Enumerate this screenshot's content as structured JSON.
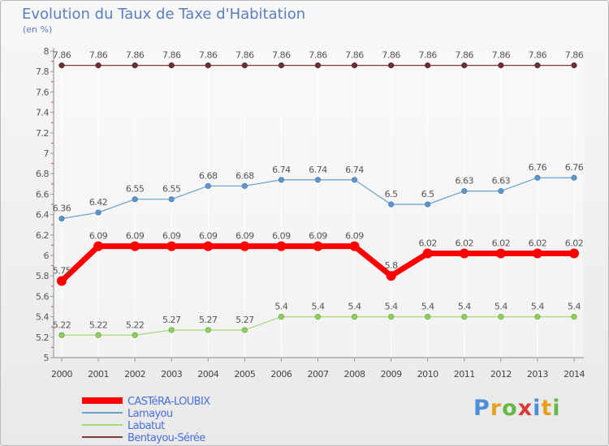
{
  "chart_data": {
    "type": "line",
    "title": "Evolution du Taux de Taxe d'Habitation",
    "ylabel": "(en %)",
    "ylim": [
      5,
      8
    ],
    "yticks": [
      "5",
      "5.2",
      "5.4",
      "5.6",
      "5.8",
      "6",
      "6.2",
      "6.4",
      "6.6",
      "6.8",
      "7",
      "7.2",
      "7.4",
      "7.6",
      "7.8",
      "8"
    ],
    "categories": [
      "2000",
      "2001",
      "2002",
      "2003",
      "2004",
      "2005",
      "2006",
      "2007",
      "2008",
      "2009",
      "2010",
      "2011",
      "2012",
      "2013",
      "2014"
    ],
    "series": [
      {
        "name": "CASTéRA-LOUBIX",
        "color": "#ff0000",
        "values": [
          5.75,
          6.09,
          6.09,
          6.09,
          6.09,
          6.09,
          6.09,
          6.09,
          6.09,
          5.8,
          6.02,
          6.02,
          6.02,
          6.02,
          6.02
        ]
      },
      {
        "name": "Lamayou",
        "color": "#6a9fcf",
        "values": [
          6.36,
          6.42,
          6.55,
          6.55,
          6.68,
          6.68,
          6.74,
          6.74,
          6.74,
          6.5,
          6.5,
          6.63,
          6.63,
          6.76,
          6.76
        ]
      },
      {
        "name": "Labatut",
        "color": "#a3d977",
        "values": [
          5.22,
          5.22,
          5.22,
          5.27,
          5.27,
          5.27,
          5.4,
          5.4,
          5.4,
          5.4,
          5.4,
          5.4,
          5.4,
          5.4,
          5.4
        ]
      },
      {
        "name": "Bentayou-Sérée",
        "color": "#7a3b3b",
        "values": [
          7.86,
          7.86,
          7.86,
          7.86,
          7.86,
          7.86,
          7.86,
          7.86,
          7.86,
          7.86,
          7.86,
          7.86,
          7.86,
          7.86,
          7.86
        ]
      }
    ]
  },
  "brand": {
    "letters": [
      "P",
      "r",
      "o",
      "x",
      "i",
      "t",
      "i"
    ],
    "colors": [
      "#4a8fd8",
      "#e6a020",
      "#66b844",
      "#d83a3a",
      "#4a8fd8",
      "#e6a020",
      "#66b844"
    ]
  }
}
